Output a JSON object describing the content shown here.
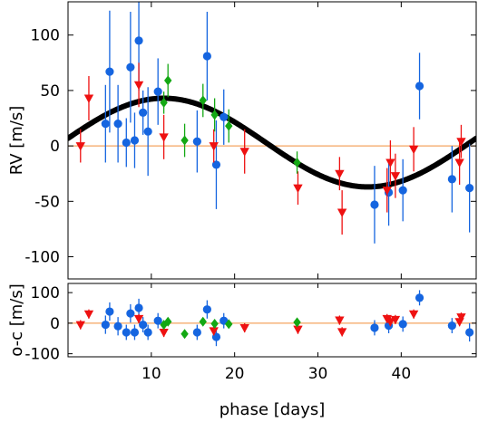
{
  "chart_data": [
    {
      "type": "scatter",
      "panel": "rv",
      "ylabel": "RV [m/s]",
      "xlim": [
        0,
        49
      ],
      "ylim": [
        -120,
        130
      ],
      "xticks": [
        10,
        20,
        30,
        40
      ],
      "yticks": [
        -100,
        -50,
        0,
        50,
        100
      ],
      "ytick_labels": [
        "-100",
        "-50",
        "0",
        "50",
        "100"
      ],
      "reference_line": {
        "y": 0,
        "color": "#f4a460"
      },
      "model": {
        "type": "sine",
        "offset": 3,
        "amplitude": 40,
        "period": 49,
        "peak_x": 11.5,
        "color": "#000000"
      },
      "series": [
        {
          "marker": "circle",
          "color": "#1565e0",
          "points": [
            {
              "x": 4.5,
              "y": 20,
              "err": 35
            },
            {
              "x": 5.0,
              "y": 67,
              "err": 55
            },
            {
              "x": 6.0,
              "y": 20,
              "err": 35
            },
            {
              "x": 7.0,
              "y": 3,
              "err": 22
            },
            {
              "x": 7.5,
              "y": 71,
              "err": 50
            },
            {
              "x": 8.0,
              "y": 5,
              "err": 25
            },
            {
              "x": 8.5,
              "y": 95,
              "err": 45
            },
            {
              "x": 9.0,
              "y": 30,
              "err": 20
            },
            {
              "x": 9.6,
              "y": 13,
              "err": 40
            },
            {
              "x": 10.8,
              "y": 49,
              "err": 30
            },
            {
              "x": 15.5,
              "y": 4,
              "err": 28
            },
            {
              "x": 16.7,
              "y": 81,
              "err": 40
            },
            {
              "x": 17.8,
              "y": -17,
              "err": 40
            },
            {
              "x": 18.7,
              "y": 26,
              "err": 25
            },
            {
              "x": 36.8,
              "y": -53,
              "err": 35
            },
            {
              "x": 38.5,
              "y": -42,
              "err": 30
            },
            {
              "x": 40.2,
              "y": -40,
              "err": 28
            },
            {
              "x": 42.2,
              "y": 54,
              "err": 30
            },
            {
              "x": 46.1,
              "y": -30,
              "err": 30
            },
            {
              "x": 48.2,
              "y": -38,
              "err": 40
            }
          ]
        },
        {
          "marker": "triangle-down",
          "color": "#ee1111",
          "points": [
            {
              "x": 1.5,
              "y": 0,
              "err": 15
            },
            {
              "x": 2.5,
              "y": 43,
              "err": 20
            },
            {
              "x": 8.5,
              "y": 55,
              "err": 20
            },
            {
              "x": 11.5,
              "y": 8,
              "err": 20
            },
            {
              "x": 17.5,
              "y": 0,
              "err": 15
            },
            {
              "x": 21.2,
              "y": -5,
              "err": 20
            },
            {
              "x": 27.6,
              "y": -38,
              "err": 15
            },
            {
              "x": 32.6,
              "y": -25,
              "err": 15
            },
            {
              "x": 32.9,
              "y": -60,
              "err": 20
            },
            {
              "x": 38.3,
              "y": -40,
              "err": 20
            },
            {
              "x": 38.7,
              "y": -15,
              "err": 20
            },
            {
              "x": 39.3,
              "y": -27,
              "err": 20
            },
            {
              "x": 41.5,
              "y": -3,
              "err": 20
            },
            {
              "x": 47.0,
              "y": -15,
              "err": 20
            },
            {
              "x": 47.2,
              "y": 4,
              "err": 15
            }
          ]
        },
        {
          "marker": "diamond",
          "color": "#13a813",
          "points": [
            {
              "x": 11.5,
              "y": 39,
              "err": 10
            },
            {
              "x": 12.0,
              "y": 59,
              "err": 15
            },
            {
              "x": 14.0,
              "y": 5,
              "err": 15
            },
            {
              "x": 16.2,
              "y": 41,
              "err": 15
            },
            {
              "x": 17.6,
              "y": 28,
              "err": 15
            },
            {
              "x": 19.3,
              "y": 18,
              "err": 15
            },
            {
              "x": 27.5,
              "y": -15,
              "err": 10
            }
          ]
        }
      ]
    },
    {
      "type": "scatter",
      "panel": "residuals",
      "ylabel": "o-c [m/s]",
      "xlabel": "phase [days]",
      "xlim": [
        0,
        49
      ],
      "ylim": [
        -110,
        130
      ],
      "xticks": [
        10,
        20,
        30,
        40
      ],
      "xtick_labels": [
        "10",
        "20",
        "30",
        "40"
      ],
      "yticks": [
        -100,
        0,
        100
      ],
      "ytick_labels": [
        "-100",
        "0",
        "100"
      ],
      "reference_line": {
        "y": 0,
        "color": "#f4a460"
      },
      "series": [
        {
          "marker": "circle",
          "color": "#1565e0",
          "points": [
            {
              "x": 4.5,
              "y": -5,
              "err": 30
            },
            {
              "x": 5.0,
              "y": 38,
              "err": 30
            },
            {
              "x": 6.0,
              "y": -10,
              "err": 30
            },
            {
              "x": 7.0,
              "y": -30,
              "err": 25
            },
            {
              "x": 7.5,
              "y": 32,
              "err": 30
            },
            {
              "x": 8.0,
              "y": -30,
              "err": 25
            },
            {
              "x": 8.5,
              "y": 50,
              "err": 30
            },
            {
              "x": 9.0,
              "y": -5,
              "err": 25
            },
            {
              "x": 9.6,
              "y": -30,
              "err": 25
            },
            {
              "x": 10.8,
              "y": 8,
              "err": 25
            },
            {
              "x": 15.5,
              "y": -30,
              "err": 25
            },
            {
              "x": 16.7,
              "y": 45,
              "err": 30
            },
            {
              "x": 17.8,
              "y": -45,
              "err": 30
            },
            {
              "x": 18.7,
              "y": 8,
              "err": 25
            },
            {
              "x": 36.8,
              "y": -15,
              "err": 25
            },
            {
              "x": 38.5,
              "y": -8,
              "err": 25
            },
            {
              "x": 40.2,
              "y": -3,
              "err": 25
            },
            {
              "x": 42.2,
              "y": 83,
              "err": 25
            },
            {
              "x": 46.1,
              "y": -8,
              "err": 25
            },
            {
              "x": 48.2,
              "y": -30,
              "err": 30
            }
          ]
        },
        {
          "marker": "triangle-down",
          "color": "#ee1111",
          "points": [
            {
              "x": 1.5,
              "y": -5,
              "err": 15
            },
            {
              "x": 2.5,
              "y": 30,
              "err": 15
            },
            {
              "x": 8.5,
              "y": 15,
              "err": 15
            },
            {
              "x": 11.5,
              "y": -30,
              "err": 15
            },
            {
              "x": 17.5,
              "y": -25,
              "err": 15
            },
            {
              "x": 21.2,
              "y": -15,
              "err": 15
            },
            {
              "x": 27.6,
              "y": -20,
              "err": 15
            },
            {
              "x": 32.6,
              "y": 10,
              "err": 15
            },
            {
              "x": 32.9,
              "y": -28,
              "err": 15
            },
            {
              "x": 38.3,
              "y": 15,
              "err": 15
            },
            {
              "x": 38.7,
              "y": 5,
              "err": 15
            },
            {
              "x": 39.3,
              "y": 12,
              "err": 15
            },
            {
              "x": 41.5,
              "y": 30,
              "err": 15
            },
            {
              "x": 47.0,
              "y": 5,
              "err": 15
            },
            {
              "x": 47.2,
              "y": 20,
              "err": 15
            }
          ]
        },
        {
          "marker": "diamond",
          "color": "#13a813",
          "points": [
            {
              "x": 11.5,
              "y": -5,
              "err": 8
            },
            {
              "x": 12.0,
              "y": 5,
              "err": 10
            },
            {
              "x": 14.0,
              "y": -35,
              "err": 10
            },
            {
              "x": 16.2,
              "y": 5,
              "err": 10
            },
            {
              "x": 17.6,
              "y": -2,
              "err": 10
            },
            {
              "x": 19.3,
              "y": -3,
              "err": 10
            },
            {
              "x": 27.5,
              "y": 3,
              "err": 8
            }
          ]
        }
      ]
    }
  ]
}
